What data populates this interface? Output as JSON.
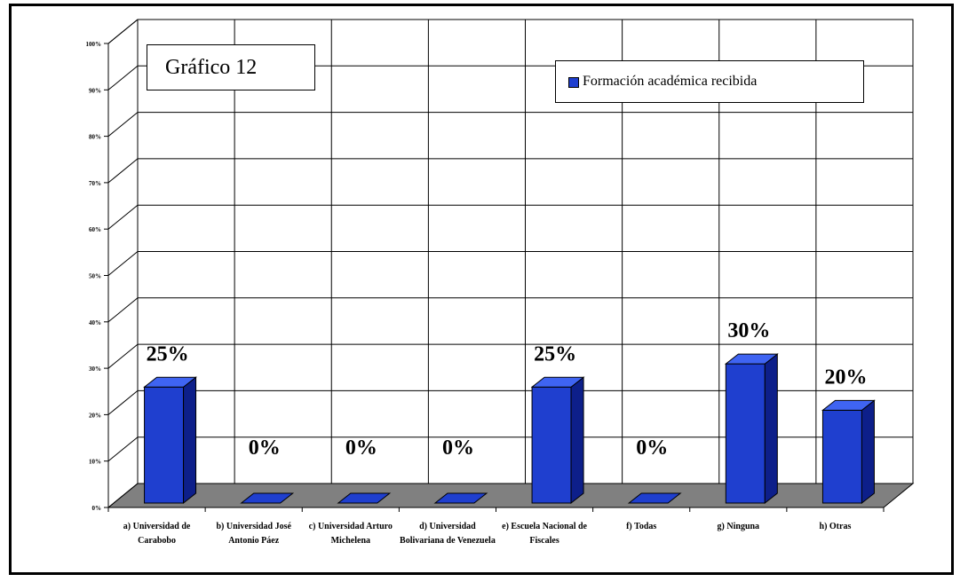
{
  "chart_data": {
    "type": "bar",
    "title": "Gráfico 12",
    "categories": [
      "a) Universidad de Carabobo",
      "b) Universidad José Antonio Páez",
      "c) Universidad Arturo Michelena",
      "d) Universidad Bolivariana de Venezuela",
      "e) Escuela Nacional de Fiscales",
      "f) Todas",
      "g) Ninguna",
      "h) Otras"
    ],
    "series": [
      {
        "name": "Formación académica recibida",
        "values": [
          25,
          0,
          0,
          0,
          25,
          0,
          30,
          20
        ]
      }
    ],
    "data_labels": [
      "25%",
      "0%",
      "0%",
      "0%",
      "25%",
      "0%",
      "30%",
      "20%"
    ],
    "y_ticks": [
      "0%",
      "10%",
      "20%",
      "30%",
      "40%",
      "50%",
      "60%",
      "70%",
      "80%",
      "90%",
      "100%"
    ],
    "ylim": [
      0,
      100
    ],
    "grid": true,
    "legend_position": "top-right",
    "bar_color": "#1f3fcf",
    "floor_color": "#808080"
  }
}
